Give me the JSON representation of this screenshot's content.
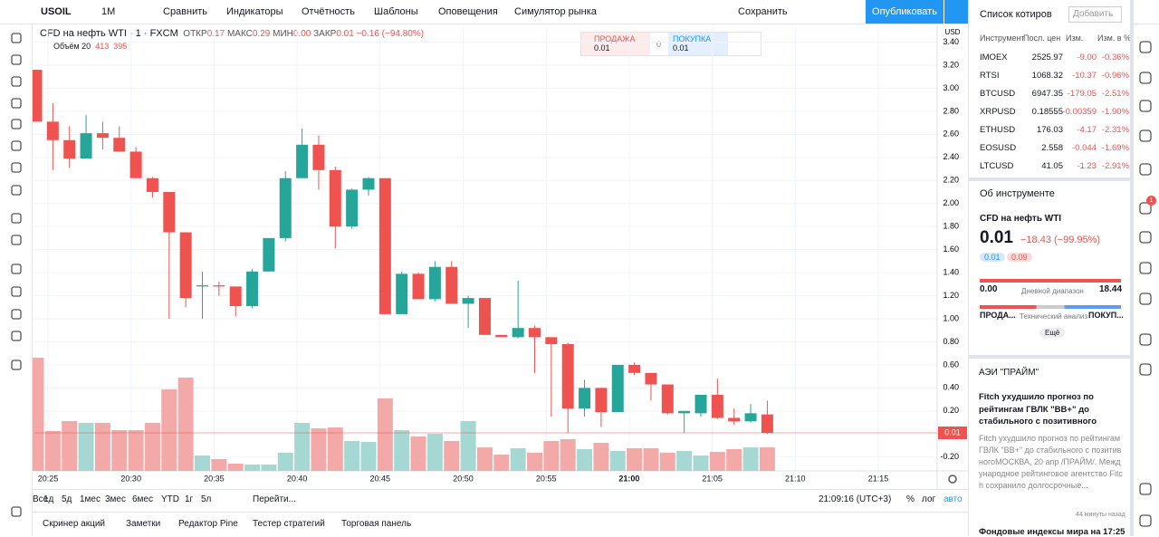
{
  "top_toolbar": {
    "symbol": "USOIL",
    "interval": "1М",
    "compare": "Сравнить",
    "indicators": "Индикаторы",
    "financials": "Отчётность",
    "templates": "Шаблоны",
    "alerts": "Оповещения",
    "replay": "Симулятор рынка",
    "save": "Сохранить",
    "publish": "Опубликовать"
  },
  "legend": {
    "title": "CFD на нефть WTI · 1 · FXCM",
    "open_label": "ОТКР",
    "open": "0.17",
    "high_label": "МАКС",
    "high": "0.29",
    "low_label": "МИН",
    "low": "0.00",
    "close_label": "ЗАКР",
    "close": "0.01",
    "change": "−0.16 (−94.80%)",
    "volume_label": "Объём 20",
    "volume_ma": "395"
  },
  "trade_widget": {
    "sell_label": "ПРОДАЖА",
    "sell": "0.01",
    "spread": "0",
    "buy_label": "ПОКУПКА",
    "buy": "0.01"
  },
  "chart": {
    "type": "candlestick",
    "currency": "USD",
    "open": [
      3.16,
      2.71,
      2.55,
      2.39,
      2.61,
      2.57,
      2.45,
      2.22,
      2.1,
      1.75,
      1.28,
      1.29,
      1.28,
      1.11,
      1.41,
      1.7,
      2.22,
      2.51,
      2.29,
      1.8,
      2.12,
      2.22,
      1.04,
      1.39,
      1.17,
      1.45,
      1.13,
      1.18,
      0.86,
      0.84,
      0.92,
      0.84,
      0.78,
      0.22,
      0.4,
      0.19,
      0.6,
      0.53,
      0.43,
      0.18,
      0.18,
      0.34,
      0.14,
      0.11,
      0.17
    ],
    "high": [
      3.16,
      2.87,
      2.67,
      2.77,
      2.71,
      2.67,
      2.49,
      2.23,
      2.1,
      1.75,
      1.41,
      1.32,
      1.28,
      1.43,
      1.7,
      2.28,
      2.65,
      2.59,
      2.32,
      2.13,
      2.23,
      2.22,
      1.41,
      1.4,
      1.5,
      1.5,
      1.2,
      1.18,
      0.86,
      1.33,
      0.94,
      0.84,
      0.79,
      0.47,
      0.4,
      0.6,
      0.62,
      0.53,
      0.43,
      0.2,
      0.34,
      0.48,
      0.22,
      0.26,
      0.29
    ],
    "low": [
      2.71,
      2.29,
      2.31,
      2.39,
      2.47,
      2.45,
      2.22,
      2.05,
      1.0,
      1.1,
      1.0,
      1.2,
      1.02,
      1.09,
      1.41,
      1.67,
      2.22,
      2.12,
      1.61,
      1.78,
      2.07,
      1.04,
      1.04,
      1.17,
      1.15,
      1.13,
      0.92,
      0.86,
      0.84,
      0.83,
      0.53,
      0.15,
      0.01,
      0.15,
      0.06,
      0.19,
      0.51,
      0.29,
      0.17,
      0.01,
      0.15,
      0.13,
      0.08,
      0.1,
      0.0
    ],
    "close": [
      2.71,
      2.55,
      2.39,
      2.61,
      2.57,
      2.45,
      2.22,
      2.1,
      1.75,
      1.18,
      1.29,
      1.28,
      1.11,
      1.41,
      1.7,
      2.22,
      2.51,
      2.29,
      1.8,
      2.12,
      2.22,
      1.04,
      1.39,
      1.17,
      1.45,
      1.13,
      1.18,
      0.86,
      0.84,
      0.92,
      0.84,
      0.78,
      0.22,
      0.4,
      0.19,
      0.6,
      0.53,
      0.43,
      0.18,
      0.2,
      0.34,
      0.14,
      0.11,
      0.18,
      0.01
    ],
    "volume": [
      1988,
      700,
      875,
      843,
      843,
      716,
      716,
      843,
      1431,
      1638,
      270,
      207,
      127,
      111,
      111,
      318,
      843,
      747,
      763,
      525,
      509,
      1272,
      716,
      604,
      652,
      525,
      875,
      413,
      286,
      398,
      318,
      525,
      557,
      382,
      493,
      350,
      398,
      398,
      318,
      350,
      270,
      334,
      382,
      413,
      413
    ],
    "ylim": [
      -0.32,
      3.53
    ],
    "yticks": [
      {
        "value": 3.4,
        "label": "3.40"
      },
      {
        "value": 3.2,
        "label": "3.20"
      },
      {
        "value": 3.0,
        "label": "3.00"
      },
      {
        "value": 2.8,
        "label": "2.80"
      },
      {
        "value": 2.6,
        "label": "2.60"
      },
      {
        "value": 2.4,
        "label": "2.40"
      },
      {
        "value": 2.2,
        "label": "2.20"
      },
      {
        "value": 2.0,
        "label": "2.00"
      },
      {
        "value": 1.8,
        "label": "1.80"
      },
      {
        "value": 1.6,
        "label": "1.60"
      },
      {
        "value": 1.4,
        "label": "1.40"
      },
      {
        "value": 1.2,
        "label": "1.20"
      },
      {
        "value": 1.0,
        "label": "1.00"
      },
      {
        "value": 0.8,
        "label": "0.80"
      },
      {
        "value": 0.6,
        "label": "0.60"
      },
      {
        "value": 0.4,
        "label": "0.40"
      },
      {
        "value": 0.2,
        "label": "0.20"
      },
      {
        "value": -0.2,
        "label": "-0.20"
      }
    ],
    "xticks": [
      "20:25",
      "20:30",
      "20:35",
      "20:40",
      "20:45",
      "20:50",
      "20:55",
      "21:00",
      "21:05",
      "21:10",
      "21:15"
    ],
    "last_price": 0.01
  },
  "bottom_bar": {
    "ranges": [
      "1д",
      "5д",
      "1мес",
      "3мес",
      "6мес",
      "YTD",
      "1г",
      "5л",
      "Все"
    ],
    "goto": "Перейти...",
    "clock": "21:09:16 (UTC+3)",
    "percent": "%",
    "log": "лог",
    "auto": "авто"
  },
  "tabs": [
    "Скринер акций",
    "Заметки",
    "Редактор Pine",
    "Тестер стратегий",
    "Торговая панель"
  ],
  "watchlist": {
    "title": "Список котиров",
    "add": "Добавить",
    "columns": [
      "Инструмент",
      "Посл. цен",
      "Изм.",
      "Изм. в %"
    ],
    "rows": [
      [
        "IMOEX",
        "2525.97",
        "-9.00",
        "-0.36%"
      ],
      [
        "RTSI",
        "1068.32",
        "-10.37",
        "-0.96%"
      ],
      [
        "BTCUSD",
        "6947.35",
        "-179.05",
        "-2.51%"
      ],
      [
        "XRPUSD",
        "0.18555",
        "-0.00359",
        "-1.90%"
      ],
      [
        "ETHUSD",
        "176.03",
        "-4.17",
        "-2.31%"
      ],
      [
        "EOSUSD",
        "2.558",
        "-0.044",
        "-1.69%"
      ],
      [
        "LTCUSD",
        "41.05",
        "-1.23",
        "-2.91%"
      ]
    ]
  },
  "details": {
    "title": "Об инструменте",
    "name": "CFD на нефть WTI",
    "price": "0.01",
    "change": "−18.43 (−99.95%)",
    "bid": "0.01",
    "ask": "0.09",
    "range_low": "0.00",
    "range_label": "Дневной диапазон",
    "range_high": "18.44",
    "sell": "ПРОДА...",
    "ta_label": "Технический анализ",
    "buy": "ПОКУП...",
    "more": "Ещё"
  },
  "news": {
    "source": "АЭИ \"ПРАЙМ\"",
    "headline": "Fitch ухудшило прогноз по рейтингам ГВЛК \"ВВ+\" до стабильного с позитивного",
    "body": "Fitch ухудшило прогноз по рейтингам ГВЛК \"ВВ+\" до стабильного с позитивногоМОСКВА, 20 апр /ПРАЙМ/. Международное рейтинговое агентство Fitch сохранило долгосрочные...",
    "time": "44 минуты назад",
    "next": "Фондовые индексы мира на 17:25"
  },
  "notification_count": "1"
}
